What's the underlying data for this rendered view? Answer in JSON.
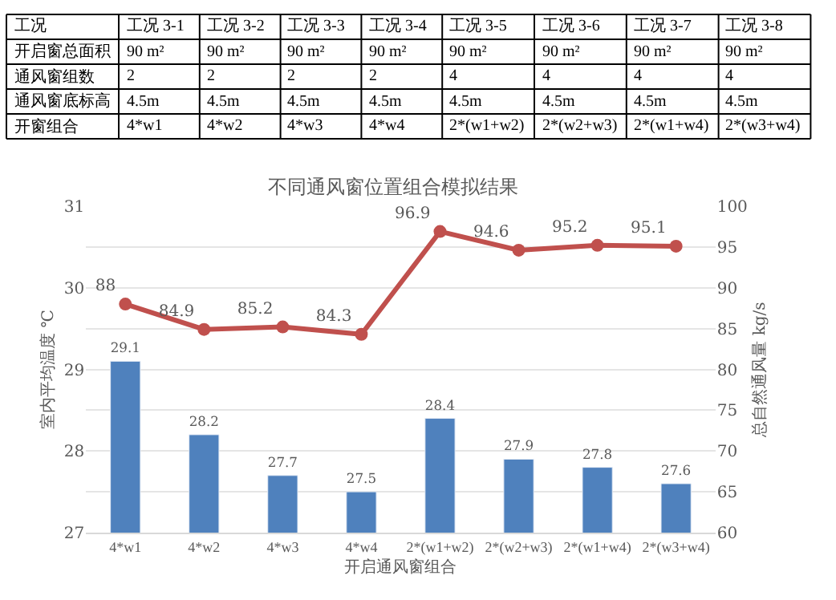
{
  "chart_data": [
    {
      "type": "other",
      "categories": [
        "工况",
        "工况 3-1",
        "工况 3-2",
        "工况 3-3",
        "工况 3-4",
        "工况 3-5",
        "工况 3-6",
        "工况 3-7",
        "工况 3-8"
      ],
      "annotations": [
        "开启窗总面积",
        "90 m²",
        "90 m²",
        "90 m²",
        "90 m²",
        "90 m²",
        "90 m²",
        "90 m²",
        "90 m²",
        "通风窗组数",
        "2",
        "2",
        "2",
        "2",
        "4",
        "4",
        "4",
        "4",
        "通风窗底标高",
        "4.5m",
        "4.5m",
        "4.5m",
        "4.5m",
        "4.5m",
        "4.5m",
        "4.5m",
        "4.5m",
        "开窗组合",
        "4*w1",
        "4*w2",
        "4*w3",
        "4*w4",
        "2*(w1+w2)",
        "2*(w2+w3)",
        "2*(w1+w4)",
        "2*(w3+w4)"
      ]
    },
    {
      "type": "bar",
      "title": "不同通风窗位置组合模拟结果",
      "xlabel": "开启通风窗组合",
      "ylabel": "室内平均温度 ℃",
      "y2label": "总自然通风量 kg/s",
      "categories": [
        "4*w1",
        "4*w2",
        "4*w3",
        "4*w4",
        "2*(w1+w2)",
        "2*(w2+w3)",
        "2*(w1+w4)",
        "2*(w3+w4)"
      ],
      "series": [
        {
          "type": "bar",
          "color": "#4f81bd",
          "values": [
            29.1,
            28.2,
            27.7,
            27.5,
            28.4,
            27.9,
            27.8,
            27.6
          ]
        },
        {
          "type": "line",
          "axis": "y2",
          "color": "#c0504d",
          "values": [
            88,
            84.9,
            85.2,
            84.3,
            96.9,
            94.6,
            95.2,
            95.1
          ]
        }
      ],
      "ylim": [
        27,
        31
      ],
      "yticks": [
        27,
        {
          "value": 27.5,
          "label": null
        },
        28,
        {
          "value": 28.5,
          "label": null
        },
        29,
        {
          "value": 29.5,
          "label": null
        },
        30,
        {
          "value": 30.5,
          "label": null
        },
        31
      ],
      "y2lim": [
        60,
        100
      ],
      "y2ticks": [
        60,
        65,
        70,
        75,
        80,
        85,
        90,
        95,
        100
      ],
      "grid": "y",
      "data_labels": true,
      "marker": "circle",
      "line_style": "solid"
    }
  ]
}
